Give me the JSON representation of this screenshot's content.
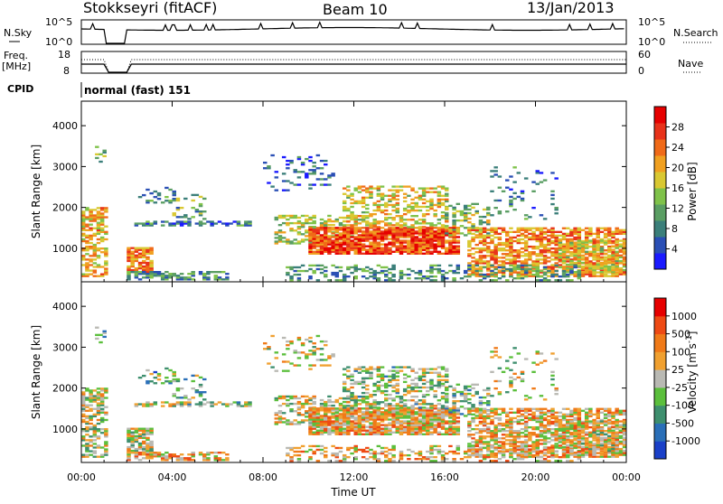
{
  "header": {
    "station": "Stokkseyri (fitACF)",
    "beam": "Beam 10",
    "date": "13/Jan/2013"
  },
  "panels": {
    "nsky": {
      "label": "N.Sky",
      "ticks": [
        "10^5",
        "10^0"
      ],
      "right_label": "N.Search",
      "right_ticks": [
        "10^5",
        "10^0"
      ]
    },
    "freq": {
      "label": "Freq.",
      "units": "[MHz]",
      "ticks": [
        "18",
        "8"
      ],
      "right_label": "Nave",
      "right_ticks": [
        "60",
        "0"
      ]
    },
    "cpid": {
      "label": "CPID",
      "value": "normal (fast) 151"
    }
  },
  "chart_data": [
    {
      "type": "heatmap",
      "name": "power",
      "ylabel": "Slant Range [km]",
      "yticks": [
        "4000",
        "3000",
        "2000",
        "1000"
      ],
      "ylim": [
        180,
        4600
      ],
      "colorbar": {
        "label": "Power [dB]",
        "ticks": [
          "28",
          "24",
          "20",
          "16",
          "12",
          "8",
          "4"
        ],
        "range": [
          0,
          32
        ]
      }
    },
    {
      "type": "heatmap",
      "name": "velocity",
      "ylabel": "Slant Range [km]",
      "yticks": [
        "4000",
        "3000",
        "2000",
        "1000"
      ],
      "ylim": [
        180,
        4600
      ],
      "xlabel": "Time UT",
      "xticks": [
        "00:00",
        "04:00",
        "08:00",
        "12:00",
        "16:00",
        "20:00",
        "00:00"
      ],
      "colorbar": {
        "label": "Velocity [m s^-1]",
        "ticks": [
          "1000",
          "500",
          "100",
          "25",
          "-25",
          "-100",
          "-500",
          "-1000"
        ]
      }
    }
  ],
  "colors": {
    "power": [
      "#1a1aff",
      "#2a4fb5",
      "#3b7f7a",
      "#5a9e63",
      "#7fc24a",
      "#d9c832",
      "#f0a020",
      "#f06a18",
      "#e8321a",
      "#e60000"
    ],
    "velocity": [
      "#1a40c8",
      "#2a6fb8",
      "#3e8f6e",
      "#5bbf3c",
      "#b9b9b3",
      "#f0a030",
      "#f07a18",
      "#ee4a14",
      "#e60000"
    ]
  }
}
